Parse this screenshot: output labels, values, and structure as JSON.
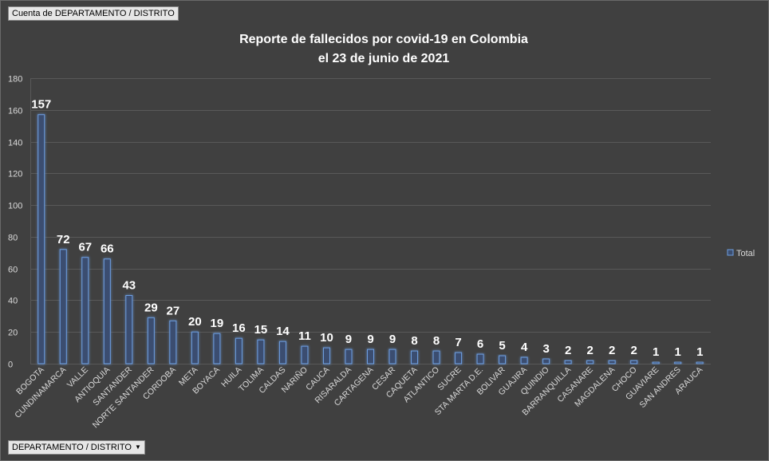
{
  "pivot": {
    "value_field_label": "Cuenta de DEPARTAMENTO / DISTRITO",
    "axis_field_label": "DEPARTAMENTO / DISTRITO",
    "axis_field_dropdown_icon": "triangle-down"
  },
  "colors": {
    "background": "#404040",
    "bar_fill": "#3b4e70",
    "bar_stroke": "#6e9ee0",
    "bar_glow": "#4f86d6",
    "gridline": "#595959",
    "text": "#ffffff",
    "tick_text": "#d9d9d9"
  },
  "chart_data": {
    "type": "bar",
    "title_line1": "Reporte de fallecidos por covid-19 en Colombia",
    "title_line2": "el 23 de junio de 2021",
    "xlabel": "",
    "ylabel": "",
    "ylim": [
      0,
      180
    ],
    "yticks": [
      0,
      20,
      40,
      60,
      80,
      100,
      120,
      140,
      160,
      180
    ],
    "grid": true,
    "legend_position": "right",
    "categories": [
      "BOGOTA",
      "CUNDINAMARCA",
      "VALLE",
      "ANTIOQUIA",
      "SANTANDER",
      "NORTE SANTANDER",
      "CORDOBA",
      "META",
      "BOYACA",
      "HUILA",
      "TOLIMA",
      "CALDAS",
      "NARIÑO",
      "CAUCA",
      "RISARALDA",
      "CARTAGENA",
      "CESAR",
      "CAQUETA",
      "ATLANTICO",
      "SUCRE",
      "STA MARTA D.E.",
      "BOLIVAR",
      "GUAJIRA",
      "QUINDIO",
      "BARRANQUILLA",
      "CASANARE",
      "MAGDALENA",
      "CHOCO",
      "GUAVIARE",
      "SAN ANDRES",
      "ARAUCA"
    ],
    "series": [
      {
        "name": "Total",
        "values": [
          157,
          72,
          67,
          66,
          43,
          29,
          27,
          20,
          19,
          16,
          15,
          14,
          11,
          10,
          9,
          9,
          9,
          8,
          8,
          7,
          6,
          5,
          4,
          3,
          2,
          2,
          2,
          2,
          1,
          1,
          1
        ]
      }
    ]
  }
}
